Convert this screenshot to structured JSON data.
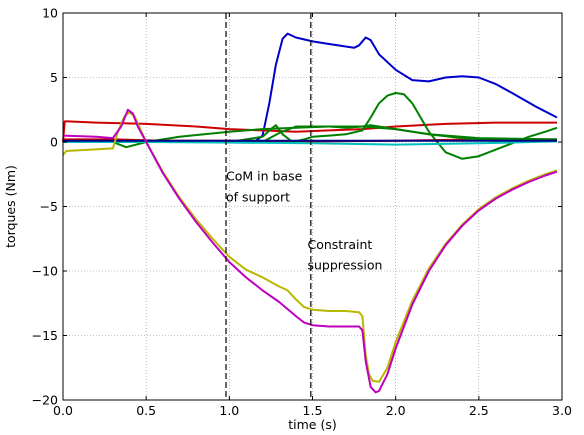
{
  "chart_data": {
    "type": "line",
    "title": "",
    "xlabel": "time (s)",
    "ylabel": "torques (Nm)",
    "xlim": [
      0.0,
      3.0
    ],
    "ylim": [
      -20,
      10
    ],
    "grid": true,
    "xticks": [
      0.0,
      0.5,
      1.0,
      1.5,
      2.0,
      2.5,
      3.0
    ],
    "xtick_labels": [
      "0.0",
      "0.5",
      "1.0",
      "1.5",
      "2.0",
      "2.5",
      "3.0"
    ],
    "yticks": [
      10,
      5,
      0,
      -5,
      -10,
      -15,
      -20
    ],
    "ytick_labels": [
      "10",
      "5",
      "0",
      "−5",
      "−10",
      "−15",
      "−20"
    ],
    "vlines": [
      {
        "x": 0.98,
        "style": "dashed",
        "color": "#000000"
      },
      {
        "x": 1.49,
        "style": "dashed",
        "color": "#000000"
      }
    ],
    "annotations": [
      {
        "x": 0.98,
        "y": -3.0,
        "text": "CoM in base"
      },
      {
        "x": 0.98,
        "y": -4.6,
        "text": "of support"
      },
      {
        "x": 1.47,
        "y": -8.3,
        "text": "Constraint"
      },
      {
        "x": 1.47,
        "y": -9.9,
        "text": "suppression"
      }
    ],
    "series": [
      {
        "color": "#0000cc",
        "points": [
          [
            0.0,
            0.0
          ],
          [
            1.0,
            0.0
          ],
          [
            1.15,
            0.0
          ],
          [
            1.2,
            0.5
          ],
          [
            1.24,
            3.0
          ],
          [
            1.28,
            6.0
          ],
          [
            1.32,
            8.0
          ],
          [
            1.35,
            8.4
          ],
          [
            1.4,
            8.1
          ],
          [
            1.5,
            7.8
          ],
          [
            1.6,
            7.6
          ],
          [
            1.75,
            7.3
          ],
          [
            1.78,
            7.5
          ],
          [
            1.82,
            8.1
          ],
          [
            1.85,
            7.9
          ],
          [
            1.9,
            6.8
          ],
          [
            2.0,
            5.6
          ],
          [
            2.1,
            4.8
          ],
          [
            2.2,
            4.7
          ],
          [
            2.3,
            5.0
          ],
          [
            2.4,
            5.1
          ],
          [
            2.5,
            5.0
          ],
          [
            2.6,
            4.5
          ],
          [
            2.7,
            3.8
          ],
          [
            2.85,
            2.7
          ],
          [
            2.97,
            1.9
          ]
        ]
      },
      {
        "color": "#cc0000",
        "points": [
          [
            0.0,
            0.0
          ],
          [
            0.01,
            1.6
          ],
          [
            0.03,
            1.6
          ],
          [
            0.2,
            1.5
          ],
          [
            0.5,
            1.4
          ],
          [
            0.8,
            1.2
          ],
          [
            1.0,
            1.0
          ],
          [
            1.2,
            0.9
          ],
          [
            1.4,
            0.8
          ],
          [
            1.6,
            0.9
          ],
          [
            1.8,
            1.0
          ],
          [
            2.0,
            1.2
          ],
          [
            2.3,
            1.4
          ],
          [
            2.6,
            1.5
          ],
          [
            2.97,
            1.5
          ]
        ]
      },
      {
        "color": "#cc0000",
        "points": [
          [
            0.0,
            0.2
          ],
          [
            0.3,
            0.2
          ],
          [
            0.6,
            0.1
          ],
          [
            1.0,
            0.1
          ],
          [
            1.5,
            0.05
          ],
          [
            2.0,
            0.1
          ],
          [
            2.5,
            0.2
          ],
          [
            2.97,
            0.2
          ]
        ]
      },
      {
        "color": "#008000",
        "points": [
          [
            0.0,
            0.0
          ],
          [
            0.3,
            0.0
          ],
          [
            0.38,
            -0.4
          ],
          [
            0.5,
            0.0
          ],
          [
            0.7,
            0.4
          ],
          [
            1.0,
            0.8
          ],
          [
            1.2,
            1.0
          ],
          [
            1.4,
            1.1
          ],
          [
            1.6,
            1.2
          ],
          [
            1.8,
            1.2
          ],
          [
            2.0,
            1.0
          ],
          [
            2.2,
            0.6
          ],
          [
            2.4,
            0.3
          ],
          [
            2.6,
            0.1
          ],
          [
            2.97,
            0.2
          ]
        ]
      },
      {
        "color": "#008000",
        "points": [
          [
            0.0,
            0.0
          ],
          [
            1.0,
            0.0
          ],
          [
            1.2,
            0.4
          ],
          [
            1.25,
            1.0
          ],
          [
            1.28,
            1.3
          ],
          [
            1.32,
            0.6
          ],
          [
            1.38,
            0.0
          ],
          [
            1.45,
            0.2
          ],
          [
            1.5,
            0.4
          ],
          [
            1.6,
            0.5
          ],
          [
            1.7,
            0.6
          ],
          [
            1.8,
            0.9
          ],
          [
            1.85,
            1.9
          ],
          [
            1.9,
            3.0
          ],
          [
            1.95,
            3.6
          ],
          [
            2.0,
            3.8
          ],
          [
            2.05,
            3.7
          ],
          [
            2.1,
            3.0
          ],
          [
            2.2,
            0.8
          ],
          [
            2.3,
            -0.8
          ],
          [
            2.4,
            -1.3
          ],
          [
            2.5,
            -1.1
          ],
          [
            2.6,
            -0.6
          ],
          [
            2.7,
            -0.1
          ],
          [
            2.8,
            0.4
          ],
          [
            2.9,
            0.8
          ],
          [
            2.97,
            1.1
          ]
        ]
      },
      {
        "color": "#008000",
        "points": [
          [
            0.0,
            0.0
          ],
          [
            1.2,
            0.0
          ],
          [
            1.3,
            0.7
          ],
          [
            1.4,
            1.2
          ],
          [
            1.6,
            1.2
          ],
          [
            1.7,
            1.1
          ],
          [
            1.8,
            1.2
          ],
          [
            1.85,
            1.3
          ],
          [
            2.0,
            1.0
          ],
          [
            2.2,
            0.6
          ],
          [
            2.5,
            0.3
          ],
          [
            2.97,
            0.2
          ]
        ]
      },
      {
        "color": "#00bfbf",
        "points": [
          [
            0.0,
            0.0
          ],
          [
            0.5,
            0.0
          ],
          [
            1.0,
            -0.05
          ],
          [
            1.5,
            -0.1
          ],
          [
            2.0,
            -0.2
          ],
          [
            2.5,
            -0.1
          ],
          [
            2.97,
            0.05
          ]
        ]
      },
      {
        "color": "#000088",
        "points": [
          [
            0.0,
            0.1
          ],
          [
            0.5,
            0.1
          ],
          [
            1.0,
            0.1
          ],
          [
            1.5,
            0.1
          ],
          [
            2.0,
            0.1
          ],
          [
            2.5,
            0.1
          ],
          [
            2.97,
            0.1
          ]
        ]
      },
      {
        "color": "#b8b800",
        "points": [
          [
            0.0,
            -1.0
          ],
          [
            0.02,
            -0.7
          ],
          [
            0.3,
            -0.5
          ],
          [
            0.33,
            0.8
          ],
          [
            0.37,
            2.0
          ],
          [
            0.4,
            2.3
          ],
          [
            0.43,
            2.0
          ],
          [
            0.5,
            0.0
          ],
          [
            0.6,
            -2.3
          ],
          [
            0.7,
            -4.3
          ],
          [
            0.8,
            -6.0
          ],
          [
            0.9,
            -7.5
          ],
          [
            1.0,
            -8.9
          ],
          [
            1.1,
            -9.9
          ],
          [
            1.2,
            -10.5
          ],
          [
            1.3,
            -11.2
          ],
          [
            1.35,
            -11.5
          ],
          [
            1.4,
            -12.2
          ],
          [
            1.45,
            -12.8
          ],
          [
            1.5,
            -13.0
          ],
          [
            1.6,
            -13.1
          ],
          [
            1.7,
            -13.1
          ],
          [
            1.78,
            -13.2
          ],
          [
            1.8,
            -13.5
          ],
          [
            1.82,
            -16.5
          ],
          [
            1.84,
            -18.0
          ],
          [
            1.86,
            -18.5
          ],
          [
            1.9,
            -18.6
          ],
          [
            1.95,
            -17.5
          ],
          [
            2.0,
            -15.5
          ],
          [
            2.1,
            -12.3
          ],
          [
            2.2,
            -9.8
          ],
          [
            2.3,
            -7.9
          ],
          [
            2.4,
            -6.4
          ],
          [
            2.5,
            -5.2
          ],
          [
            2.6,
            -4.3
          ],
          [
            2.7,
            -3.6
          ],
          [
            2.8,
            -3.0
          ],
          [
            2.9,
            -2.5
          ],
          [
            2.97,
            -2.2
          ]
        ]
      },
      {
        "color": "#bf00bf",
        "points": [
          [
            0.0,
            0.5
          ],
          [
            0.2,
            0.4
          ],
          [
            0.3,
            0.3
          ],
          [
            0.35,
            1.2
          ],
          [
            0.39,
            2.5
          ],
          [
            0.42,
            2.2
          ],
          [
            0.45,
            1.2
          ],
          [
            0.5,
            0.0
          ],
          [
            0.6,
            -2.4
          ],
          [
            0.7,
            -4.4
          ],
          [
            0.8,
            -6.2
          ],
          [
            0.9,
            -7.8
          ],
          [
            1.0,
            -9.3
          ],
          [
            1.1,
            -10.5
          ],
          [
            1.2,
            -11.5
          ],
          [
            1.3,
            -12.4
          ],
          [
            1.4,
            -13.5
          ],
          [
            1.45,
            -14.0
          ],
          [
            1.5,
            -14.2
          ],
          [
            1.6,
            -14.3
          ],
          [
            1.7,
            -14.3
          ],
          [
            1.78,
            -14.3
          ],
          [
            1.8,
            -14.6
          ],
          [
            1.82,
            -17.0
          ],
          [
            1.85,
            -19.0
          ],
          [
            1.88,
            -19.4
          ],
          [
            1.9,
            -19.3
          ],
          [
            1.95,
            -18.0
          ],
          [
            2.0,
            -16.0
          ],
          [
            2.1,
            -12.6
          ],
          [
            2.2,
            -10.0
          ],
          [
            2.3,
            -8.0
          ],
          [
            2.4,
            -6.5
          ],
          [
            2.5,
            -5.3
          ],
          [
            2.6,
            -4.4
          ],
          [
            2.7,
            -3.7
          ],
          [
            2.8,
            -3.1
          ],
          [
            2.9,
            -2.6
          ],
          [
            2.97,
            -2.3
          ]
        ]
      }
    ]
  }
}
